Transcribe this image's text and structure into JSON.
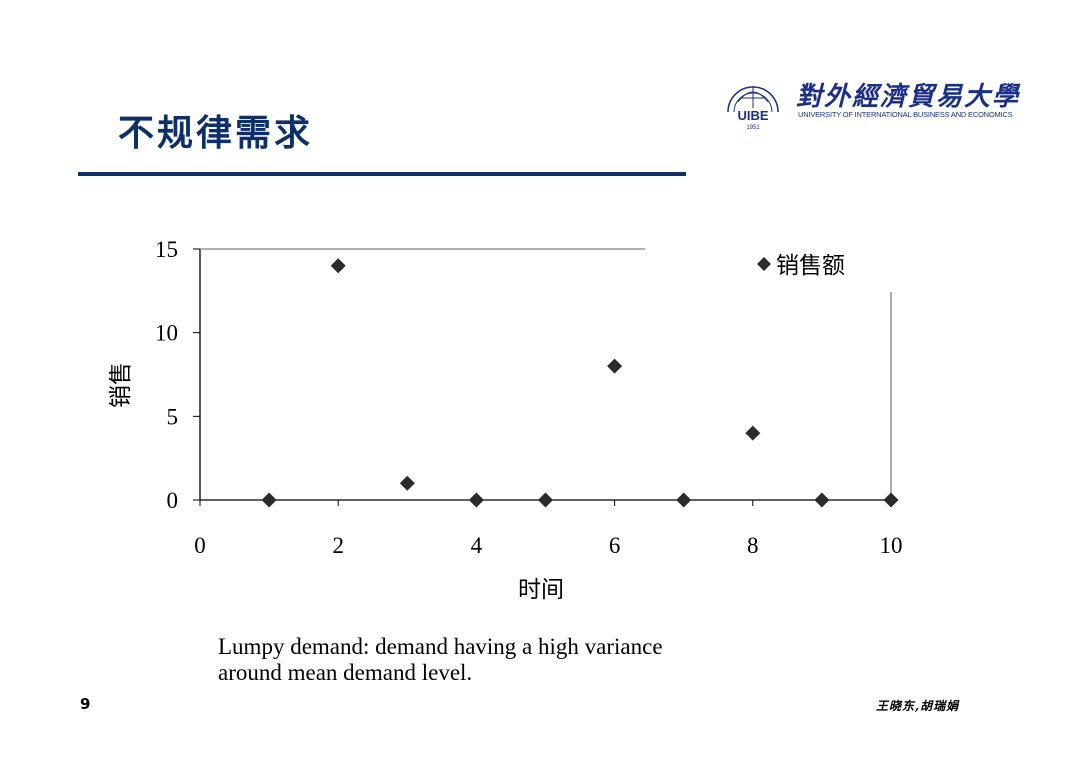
{
  "slide": {
    "title": "不规律需求",
    "page_number": "9",
    "author": "王晓东,胡瑞娟",
    "caption_line1": "Lumpy demand: demand having a high variance",
    "caption_line2": "around mean demand level."
  },
  "logo": {
    "year": "1951",
    "monogram": "UIBE",
    "name_cn": "對外經濟貿易大學",
    "name_en": "UNIVERSITY OF INTERNATIONAL BUSINESS AND ECONOMICS"
  },
  "colors": {
    "title": "#0d2f6b",
    "marker": "#2b2b2b",
    "logo": "#1a2f8c"
  },
  "chart_data": {
    "type": "scatter",
    "x": [
      1,
      2,
      3,
      4,
      5,
      6,
      7,
      8,
      9,
      10
    ],
    "series": [
      {
        "name": "销售额",
        "values": [
          0,
          14,
          1,
          0,
          0,
          8,
          0,
          4,
          0,
          0
        ]
      }
    ],
    "xlabel": "时间",
    "ylabel": "销售",
    "xlim": [
      0,
      10
    ],
    "ylim": [
      0,
      15
    ],
    "xticks": [
      0,
      2,
      4,
      6,
      8,
      10
    ],
    "yticks": [
      0,
      5,
      10,
      15
    ],
    "grid": false,
    "legend_position": "top-right",
    "marker": "diamond"
  }
}
